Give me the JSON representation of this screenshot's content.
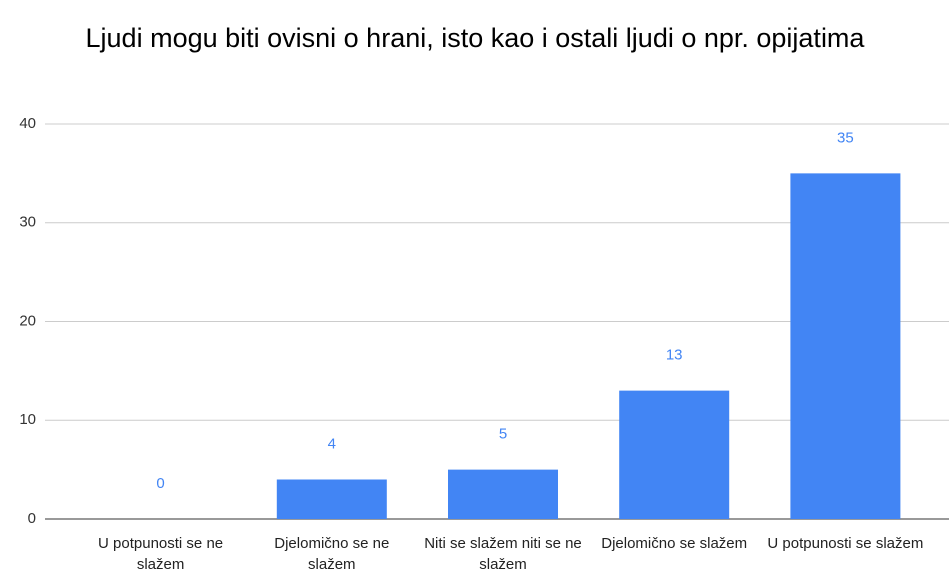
{
  "chart_data": {
    "type": "bar",
    "title": "Ljudi mogu biti ovisni o hrani, isto kao i ostali ljudi o npr. opijatima",
    "categories": [
      "U potpunosti se ne slažem",
      "Djelomično se ne slažem",
      "Niti se slažem niti se ne slažem",
      "Djelomično se slažem",
      "U potpunosti se slažem"
    ],
    "values": [
      0,
      4,
      5,
      13,
      35
    ],
    "color": "#4285f4",
    "ylim": [
      0,
      40
    ],
    "yticks": [
      0,
      10,
      20,
      30,
      40
    ],
    "grid": true
  }
}
